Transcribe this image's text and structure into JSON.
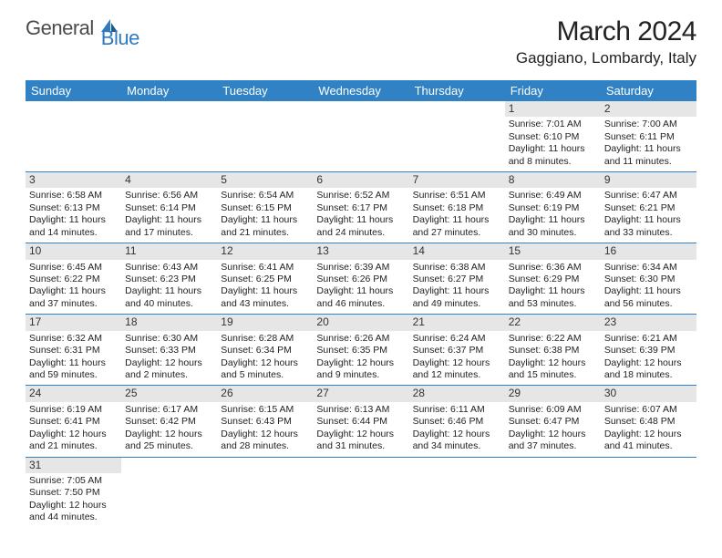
{
  "logo": {
    "text1": "General",
    "text2": "Blue"
  },
  "title": "March 2024",
  "location": "Gaggiano, Lombardy, Italy",
  "colors": {
    "header_bg": "#3082c4",
    "header_text": "#ffffff",
    "daynum_bg": "#e6e6e6",
    "row_border": "#3082c4",
    "logo_gray": "#4a4a4a",
    "logo_blue": "#2f7bbf"
  },
  "dayNames": [
    "Sunday",
    "Monday",
    "Tuesday",
    "Wednesday",
    "Thursday",
    "Friday",
    "Saturday"
  ],
  "weeks": [
    [
      null,
      null,
      null,
      null,
      null,
      {
        "n": "1",
        "sr": "7:01 AM",
        "ss": "6:10 PM",
        "dl": "11 hours and 8 minutes."
      },
      {
        "n": "2",
        "sr": "7:00 AM",
        "ss": "6:11 PM",
        "dl": "11 hours and 11 minutes."
      }
    ],
    [
      {
        "n": "3",
        "sr": "6:58 AM",
        "ss": "6:13 PM",
        "dl": "11 hours and 14 minutes."
      },
      {
        "n": "4",
        "sr": "6:56 AM",
        "ss": "6:14 PM",
        "dl": "11 hours and 17 minutes."
      },
      {
        "n": "5",
        "sr": "6:54 AM",
        "ss": "6:15 PM",
        "dl": "11 hours and 21 minutes."
      },
      {
        "n": "6",
        "sr": "6:52 AM",
        "ss": "6:17 PM",
        "dl": "11 hours and 24 minutes."
      },
      {
        "n": "7",
        "sr": "6:51 AM",
        "ss": "6:18 PM",
        "dl": "11 hours and 27 minutes."
      },
      {
        "n": "8",
        "sr": "6:49 AM",
        "ss": "6:19 PM",
        "dl": "11 hours and 30 minutes."
      },
      {
        "n": "9",
        "sr": "6:47 AM",
        "ss": "6:21 PM",
        "dl": "11 hours and 33 minutes."
      }
    ],
    [
      {
        "n": "10",
        "sr": "6:45 AM",
        "ss": "6:22 PM",
        "dl": "11 hours and 37 minutes."
      },
      {
        "n": "11",
        "sr": "6:43 AM",
        "ss": "6:23 PM",
        "dl": "11 hours and 40 minutes."
      },
      {
        "n": "12",
        "sr": "6:41 AM",
        "ss": "6:25 PM",
        "dl": "11 hours and 43 minutes."
      },
      {
        "n": "13",
        "sr": "6:39 AM",
        "ss": "6:26 PM",
        "dl": "11 hours and 46 minutes."
      },
      {
        "n": "14",
        "sr": "6:38 AM",
        "ss": "6:27 PM",
        "dl": "11 hours and 49 minutes."
      },
      {
        "n": "15",
        "sr": "6:36 AM",
        "ss": "6:29 PM",
        "dl": "11 hours and 53 minutes."
      },
      {
        "n": "16",
        "sr": "6:34 AM",
        "ss": "6:30 PM",
        "dl": "11 hours and 56 minutes."
      }
    ],
    [
      {
        "n": "17",
        "sr": "6:32 AM",
        "ss": "6:31 PM",
        "dl": "11 hours and 59 minutes."
      },
      {
        "n": "18",
        "sr": "6:30 AM",
        "ss": "6:33 PM",
        "dl": "12 hours and 2 minutes."
      },
      {
        "n": "19",
        "sr": "6:28 AM",
        "ss": "6:34 PM",
        "dl": "12 hours and 5 minutes."
      },
      {
        "n": "20",
        "sr": "6:26 AM",
        "ss": "6:35 PM",
        "dl": "12 hours and 9 minutes."
      },
      {
        "n": "21",
        "sr": "6:24 AM",
        "ss": "6:37 PM",
        "dl": "12 hours and 12 minutes."
      },
      {
        "n": "22",
        "sr": "6:22 AM",
        "ss": "6:38 PM",
        "dl": "12 hours and 15 minutes."
      },
      {
        "n": "23",
        "sr": "6:21 AM",
        "ss": "6:39 PM",
        "dl": "12 hours and 18 minutes."
      }
    ],
    [
      {
        "n": "24",
        "sr": "6:19 AM",
        "ss": "6:41 PM",
        "dl": "12 hours and 21 minutes."
      },
      {
        "n": "25",
        "sr": "6:17 AM",
        "ss": "6:42 PM",
        "dl": "12 hours and 25 minutes."
      },
      {
        "n": "26",
        "sr": "6:15 AM",
        "ss": "6:43 PM",
        "dl": "12 hours and 28 minutes."
      },
      {
        "n": "27",
        "sr": "6:13 AM",
        "ss": "6:44 PM",
        "dl": "12 hours and 31 minutes."
      },
      {
        "n": "28",
        "sr": "6:11 AM",
        "ss": "6:46 PM",
        "dl": "12 hours and 34 minutes."
      },
      {
        "n": "29",
        "sr": "6:09 AM",
        "ss": "6:47 PM",
        "dl": "12 hours and 37 minutes."
      },
      {
        "n": "30",
        "sr": "6:07 AM",
        "ss": "6:48 PM",
        "dl": "12 hours and 41 minutes."
      }
    ],
    [
      {
        "n": "31",
        "sr": "7:05 AM",
        "ss": "7:50 PM",
        "dl": "12 hours and 44 minutes."
      },
      null,
      null,
      null,
      null,
      null,
      null
    ]
  ],
  "labels": {
    "sunrise": "Sunrise: ",
    "sunset": "Sunset: ",
    "daylight": "Daylight: "
  }
}
